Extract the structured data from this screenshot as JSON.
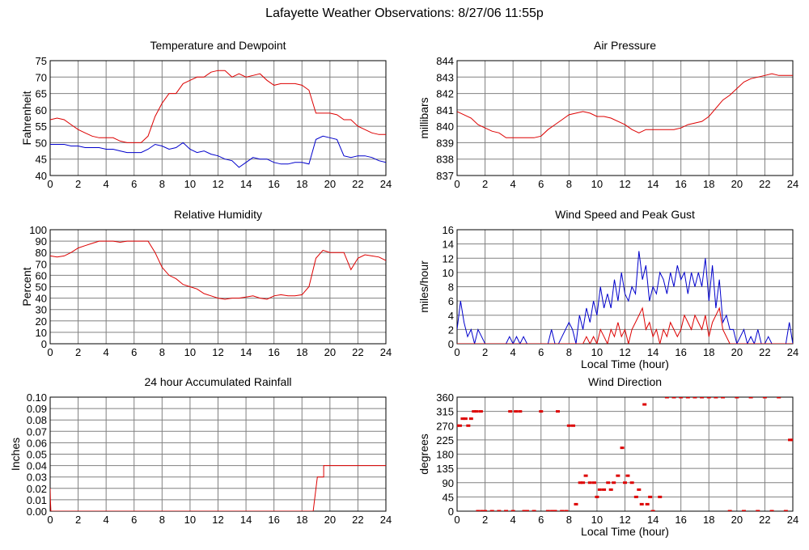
{
  "title": "Lafayette Weather Observations: 8/27/06 11:55p",
  "colors": {
    "series_red": "#dd0000",
    "series_blue": "#0000cc",
    "grid": "#808080",
    "frame": "#000000"
  },
  "chart_data": [
    {
      "id": "temperature",
      "type": "line",
      "title": "Temperature and Dewpoint",
      "xlabel": "",
      "ylabel": "Fahrenheit",
      "xlim": [
        0,
        24
      ],
      "ylim": [
        40,
        75
      ],
      "xticks": [
        0,
        2,
        4,
        6,
        8,
        10,
        12,
        14,
        16,
        18,
        20,
        22,
        24
      ],
      "yticks": [
        40,
        45,
        50,
        55,
        60,
        65,
        70,
        75
      ],
      "grid": true,
      "series": [
        {
          "color": "#dd0000",
          "x": [
            0,
            0.5,
            1,
            1.5,
            2,
            2.5,
            3,
            3.5,
            4,
            4.5,
            5,
            5.5,
            6,
            6.5,
            7,
            7.5,
            8,
            8.5,
            9,
            9.5,
            10,
            10.5,
            11,
            11.5,
            12,
            12.5,
            13,
            13.5,
            14,
            14.5,
            15,
            15.5,
            16,
            16.5,
            17,
            17.5,
            18,
            18.5,
            19,
            19.5,
            20,
            20.5,
            21,
            21.5,
            22,
            22.5,
            23,
            23.5,
            24
          ],
          "y": [
            57,
            57.5,
            57,
            55.5,
            54,
            53,
            52,
            51.5,
            51.5,
            51.5,
            50.5,
            50,
            50,
            50,
            52,
            58,
            62,
            65,
            65,
            68,
            69,
            70,
            70,
            71.5,
            72,
            72,
            70,
            71,
            70,
            70.5,
            71,
            69,
            67.5,
            68,
            68,
            68,
            67.5,
            66,
            59,
            59,
            59,
            58.5,
            57,
            57,
            55,
            54,
            53,
            52.5,
            52.5
          ]
        },
        {
          "color": "#0000cc",
          "x": [
            0,
            0.5,
            1,
            1.5,
            2,
            2.5,
            3,
            3.5,
            4,
            4.5,
            5,
            5.5,
            6,
            6.5,
            7,
            7.5,
            8,
            8.5,
            9,
            9.5,
            10,
            10.5,
            11,
            11.5,
            12,
            12.5,
            13,
            13.5,
            14,
            14.5,
            15,
            15.5,
            16,
            16.5,
            17,
            17.5,
            18,
            18.5,
            19,
            19.5,
            20,
            20.5,
            21,
            21.5,
            22,
            22.5,
            23,
            23.5,
            24
          ],
          "y": [
            49.5,
            49.5,
            49.5,
            49,
            49,
            48.5,
            48.5,
            48.5,
            48,
            48,
            47.5,
            47,
            47,
            47,
            48,
            49.5,
            49,
            48,
            48.5,
            50,
            48,
            47,
            47.5,
            46.5,
            46,
            45,
            44.5,
            42.5,
            44,
            45.5,
            45,
            45,
            44,
            43.5,
            43.5,
            44,
            44,
            43.5,
            51,
            52,
            51.5,
            51,
            46,
            45.5,
            46,
            46,
            45.5,
            44.5,
            44
          ]
        }
      ]
    },
    {
      "id": "pressure",
      "type": "line",
      "title": "Air Pressure",
      "xlabel": "",
      "ylabel": "millibars",
      "xlim": [
        0,
        24
      ],
      "ylim": [
        837,
        844
      ],
      "xticks": [
        0,
        2,
        4,
        6,
        8,
        10,
        12,
        14,
        16,
        18,
        20,
        22,
        24
      ],
      "yticks": [
        837,
        838,
        839,
        840,
        841,
        842,
        843,
        844
      ],
      "grid": true,
      "series": [
        {
          "color": "#dd0000",
          "x": [
            0,
            0.5,
            1,
            1.5,
            2,
            2.5,
            3,
            3.5,
            4,
            4.5,
            5,
            5.5,
            6,
            6.5,
            7,
            7.5,
            8,
            8.5,
            9,
            9.5,
            10,
            10.5,
            11,
            11.5,
            12,
            12.5,
            13,
            13.5,
            14,
            14.5,
            15,
            15.5,
            16,
            16.5,
            17,
            17.5,
            18,
            18.5,
            19,
            19.5,
            20,
            20.5,
            21,
            21.5,
            22,
            22.5,
            23,
            23.5,
            24
          ],
          "y": [
            840.9,
            840.7,
            840.5,
            840.1,
            839.9,
            839.7,
            839.6,
            839.3,
            839.3,
            839.3,
            839.3,
            839.3,
            839.4,
            839.8,
            840.1,
            840.4,
            840.7,
            840.8,
            840.9,
            840.8,
            840.6,
            840.6,
            840.5,
            840.3,
            840.1,
            839.8,
            839.6,
            839.8,
            839.8,
            839.8,
            839.8,
            839.8,
            839.9,
            840.1,
            840.2,
            840.3,
            840.6,
            841.1,
            841.6,
            841.9,
            842.3,
            842.7,
            842.9,
            843,
            843.1,
            843.2,
            843.1,
            843.1,
            843.1
          ]
        }
      ]
    },
    {
      "id": "humidity",
      "type": "line",
      "title": "Relative Humidity",
      "xlabel": "",
      "ylabel": "Percent",
      "xlim": [
        0,
        24
      ],
      "ylim": [
        0,
        100
      ],
      "xticks": [
        0,
        2,
        4,
        6,
        8,
        10,
        12,
        14,
        16,
        18,
        20,
        22,
        24
      ],
      "yticks": [
        0,
        10,
        20,
        30,
        40,
        50,
        60,
        70,
        80,
        90,
        100
      ],
      "grid": true,
      "series": [
        {
          "color": "#dd0000",
          "x": [
            0,
            0.5,
            1,
            1.5,
            2,
            2.5,
            3,
            3.5,
            4,
            4.5,
            5,
            5.5,
            6,
            6.5,
            7,
            7.5,
            8,
            8.5,
            9,
            9.5,
            10,
            10.5,
            11,
            11.5,
            12,
            12.5,
            13,
            13.5,
            14,
            14.5,
            15,
            15.5,
            16,
            16.5,
            17,
            17.5,
            18,
            18.5,
            19,
            19.5,
            20,
            20.5,
            21,
            21.5,
            22,
            22.5,
            23,
            23.5,
            24
          ],
          "y": [
            77,
            76,
            77,
            80,
            84,
            86,
            88,
            90,
            90,
            90,
            89,
            90,
            90,
            90,
            90,
            80,
            67,
            60,
            57,
            52,
            50,
            48,
            44,
            42,
            40,
            39,
            40,
            40,
            41,
            42,
            40,
            39,
            42,
            43,
            42,
            42,
            43,
            50,
            75,
            82,
            80,
            80,
            80,
            65,
            75,
            78,
            77,
            76,
            73
          ]
        }
      ]
    },
    {
      "id": "wind_speed",
      "type": "line",
      "title": "Wind Speed and Peak Gust",
      "xlabel": "Local Time (hour)",
      "ylabel": "miles/hour",
      "xlim": [
        0,
        24
      ],
      "ylim": [
        0,
        16
      ],
      "xticks": [
        0,
        2,
        4,
        6,
        8,
        10,
        12,
        14,
        16,
        18,
        20,
        22,
        24
      ],
      "yticks": [
        0,
        2,
        4,
        6,
        8,
        10,
        12,
        14,
        16
      ],
      "grid": true,
      "series": [
        {
          "color": "#0000cc",
          "x": [
            0,
            0.25,
            0.5,
            0.75,
            1,
            1.25,
            1.5,
            1.75,
            2,
            2.5,
            3,
            3.5,
            3.75,
            4,
            4.25,
            4.5,
            4.75,
            5,
            5.5,
            6,
            6.5,
            6.75,
            7,
            7.25,
            7.5,
            8,
            8.25,
            8.5,
            8.75,
            9,
            9.25,
            9.5,
            9.75,
            10,
            10.25,
            10.5,
            10.75,
            11,
            11.25,
            11.5,
            11.75,
            12,
            12.25,
            12.5,
            12.75,
            13,
            13.25,
            13.5,
            13.75,
            14,
            14.25,
            14.5,
            14.75,
            15,
            15.25,
            15.5,
            15.75,
            16,
            16.25,
            16.5,
            16.75,
            17,
            17.25,
            17.5,
            17.75,
            18,
            18.25,
            18.5,
            18.75,
            19,
            19.25,
            19.5,
            19.75,
            20,
            20.25,
            20.5,
            20.75,
            21,
            21.25,
            21.5,
            21.75,
            22,
            22.25,
            22.5,
            22.75,
            23,
            23.25,
            23.5,
            23.75,
            24
          ],
          "y": [
            2,
            6,
            3,
            1,
            2,
            0,
            2,
            1,
            0,
            0,
            0,
            0,
            1,
            0,
            1,
            0,
            1,
            0,
            0,
            0,
            0,
            2,
            0,
            0,
            1,
            3,
            2,
            0,
            4,
            2,
            5,
            3,
            6,
            4,
            8,
            5,
            7,
            5,
            9,
            6,
            10,
            7,
            6,
            8,
            7,
            13,
            9,
            11,
            6,
            8,
            7,
            10,
            9,
            7,
            10,
            8,
            11,
            9,
            10,
            7,
            10,
            8,
            10,
            8,
            12,
            6,
            11,
            5,
            9,
            3,
            4,
            2,
            2,
            0,
            1,
            2,
            0,
            1,
            0,
            2,
            0,
            0,
            1,
            0,
            0,
            0,
            0,
            0,
            3,
            0
          ]
        },
        {
          "color": "#dd0000",
          "x": [
            0,
            1,
            2,
            3,
            4,
            5,
            6,
            7,
            7.5,
            8,
            8.5,
            9,
            9.25,
            9.5,
            9.75,
            10,
            10.25,
            10.5,
            10.75,
            11,
            11.25,
            11.5,
            11.75,
            12,
            12.25,
            12.5,
            12.75,
            13,
            13.25,
            13.5,
            13.75,
            14,
            14.25,
            14.5,
            14.75,
            15,
            15.25,
            15.5,
            15.75,
            16,
            16.25,
            16.5,
            16.75,
            17,
            17.25,
            17.5,
            17.75,
            18,
            18.25,
            18.5,
            18.75,
            19,
            19.5,
            20,
            21,
            22,
            23,
            24
          ],
          "y": [
            0,
            0,
            0,
            0,
            0,
            0,
            0,
            0,
            0,
            0,
            0,
            0,
            1,
            0,
            1,
            0,
            2,
            1,
            0,
            2,
            1,
            3,
            1,
            2,
            0,
            2,
            3,
            4,
            5,
            2,
            3,
            1,
            2,
            0,
            2,
            1,
            3,
            2,
            1,
            2,
            4,
            3,
            2,
            4,
            3,
            2,
            4,
            1,
            3,
            4,
            5,
            2,
            0,
            0,
            0,
            0,
            0,
            0
          ]
        }
      ]
    },
    {
      "id": "rainfall",
      "type": "line",
      "title": "24 hour Accumulated Rainfall",
      "xlabel": "",
      "ylabel": "Inches",
      "xlim": [
        0,
        24
      ],
      "ylim": [
        0,
        0.1
      ],
      "xticks": [
        0,
        2,
        4,
        6,
        8,
        10,
        12,
        14,
        16,
        18,
        20,
        22,
        24
      ],
      "yticks": [
        0,
        0.01,
        0.02,
        0.03,
        0.04,
        0.05,
        0.06,
        0.07,
        0.08,
        0.09,
        0.1
      ],
      "ytick_labels": [
        "0.00",
        "0.01",
        "0.02",
        "0.03",
        "0.04",
        "0.05",
        "0.06",
        "0.07",
        "0.08",
        "0.09",
        "0.10"
      ],
      "grid": true,
      "series": [
        {
          "color": "#dd0000",
          "x": [
            0,
            0.02,
            0.05,
            18.8,
            19.1,
            19.1,
            19.55,
            19.55,
            24
          ],
          "y": [
            0.02,
            0.01,
            0,
            0,
            0.03,
            0.03,
            0.03,
            0.04,
            0.04
          ]
        }
      ]
    },
    {
      "id": "wind_direction",
      "type": "scatter",
      "title": "Wind Direction",
      "xlabel": "Local Time (hour)",
      "ylabel": "degrees",
      "xlim": [
        0,
        24
      ],
      "ylim": [
        0,
        360
      ],
      "xticks": [
        0,
        2,
        4,
        6,
        8,
        10,
        12,
        14,
        16,
        18,
        20,
        22,
        24
      ],
      "yticks": [
        0,
        45,
        90,
        135,
        180,
        225,
        270,
        315,
        360
      ],
      "grid": true,
      "series": [
        {
          "color": "#dd0000",
          "x": [
            0,
            0.2,
            0.4,
            0.6,
            0.8,
            1,
            1.2,
            1.4,
            1.5,
            1.7,
            1.8,
            2,
            2.5,
            3,
            3.5,
            3.8,
            4,
            4.2,
            4.5,
            4.8,
            5,
            5.5,
            6,
            6.5,
            6.8,
            7,
            7.2,
            7.5,
            7.8,
            8,
            8.3,
            8.5,
            8.8,
            9,
            9.2,
            9.5,
            9.8,
            10,
            10.2,
            10.5,
            10.8,
            11,
            11.2,
            11.5,
            11.8,
            12,
            12.2,
            12.5,
            12.8,
            13,
            13.2,
            13.4,
            13.6,
            13.8,
            14,
            14.5,
            15,
            15.5,
            16,
            16.5,
            17,
            17.5,
            18,
            18.5,
            19,
            19.5,
            20,
            20.5,
            21,
            21.5,
            22,
            22.5,
            23,
            23.5,
            23.8,
            24
          ],
          "y": [
            270,
            270,
            292,
            292,
            270,
            292,
            315,
            315,
            0,
            315,
            0,
            0,
            0,
            0,
            0,
            315,
            0,
            315,
            315,
            0,
            0,
            0,
            315,
            0,
            0,
            0,
            315,
            0,
            0,
            270,
            270,
            22,
            90,
            90,
            112,
            90,
            90,
            45,
            68,
            68,
            90,
            68,
            90,
            112,
            200,
            90,
            112,
            90,
            45,
            68,
            22,
            337,
            22,
            45,
            0,
            45,
            360,
            360,
            360,
            360,
            360,
            360,
            360,
            360,
            360,
            0,
            360,
            0,
            360,
            0,
            360,
            0,
            360,
            0,
            225,
            225
          ]
        }
      ]
    }
  ]
}
